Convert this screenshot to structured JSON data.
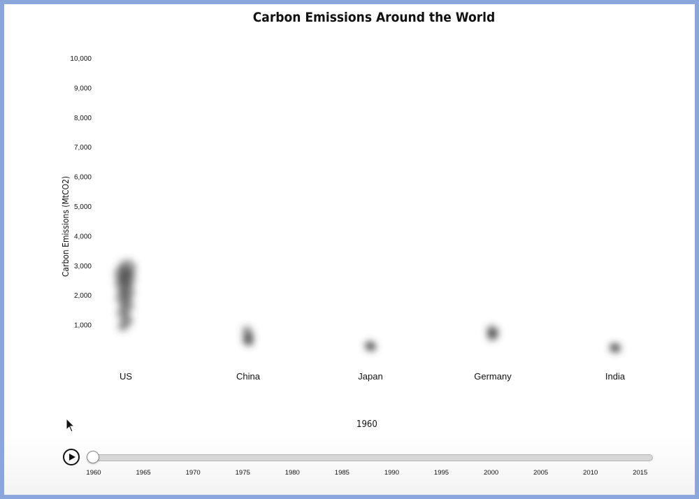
{
  "chart_data": {
    "type": "scatter",
    "title": "Carbon Emissions Around the World",
    "ylabel": "Carbon Emissions (MtCO2)",
    "ylim": [
      0,
      10000
    ],
    "yticks": [
      "1,000",
      "2,000",
      "3,000",
      "4,000",
      "5,000",
      "6,000",
      "7,000",
      "8,000",
      "9,000",
      "10,000"
    ],
    "categories": [
      "US",
      "China",
      "Japan",
      "Germany",
      "India"
    ],
    "values": {
      "US": [
        2900,
        2700,
        2550,
        2350,
        2100,
        1900,
        1650,
        1400,
        1150,
        950
      ],
      "China": [
        800,
        650,
        550,
        500,
        450,
        420
      ],
      "Japan": [
        320,
        280,
        260,
        240
      ],
      "Germany": [
        820,
        760,
        700,
        640,
        600
      ],
      "India": [
        250,
        230,
        200,
        190
      ]
    },
    "legend": "none",
    "grid": false
  },
  "slider": {
    "current_year": "1960",
    "min": 1960,
    "max": 2016,
    "value": 1960,
    "tick_labels": [
      "1960",
      "1965",
      "1970",
      "1975",
      "1980",
      "1985",
      "1990",
      "1995",
      "2000",
      "2005",
      "2010",
      "2015"
    ]
  },
  "icons": {
    "play": "play-icon",
    "cursor": "mouse-pointer-icon"
  },
  "colors": {
    "page_border": "#8aa6db",
    "bubble": "#444444",
    "slider_track": "#d8d8d8"
  }
}
